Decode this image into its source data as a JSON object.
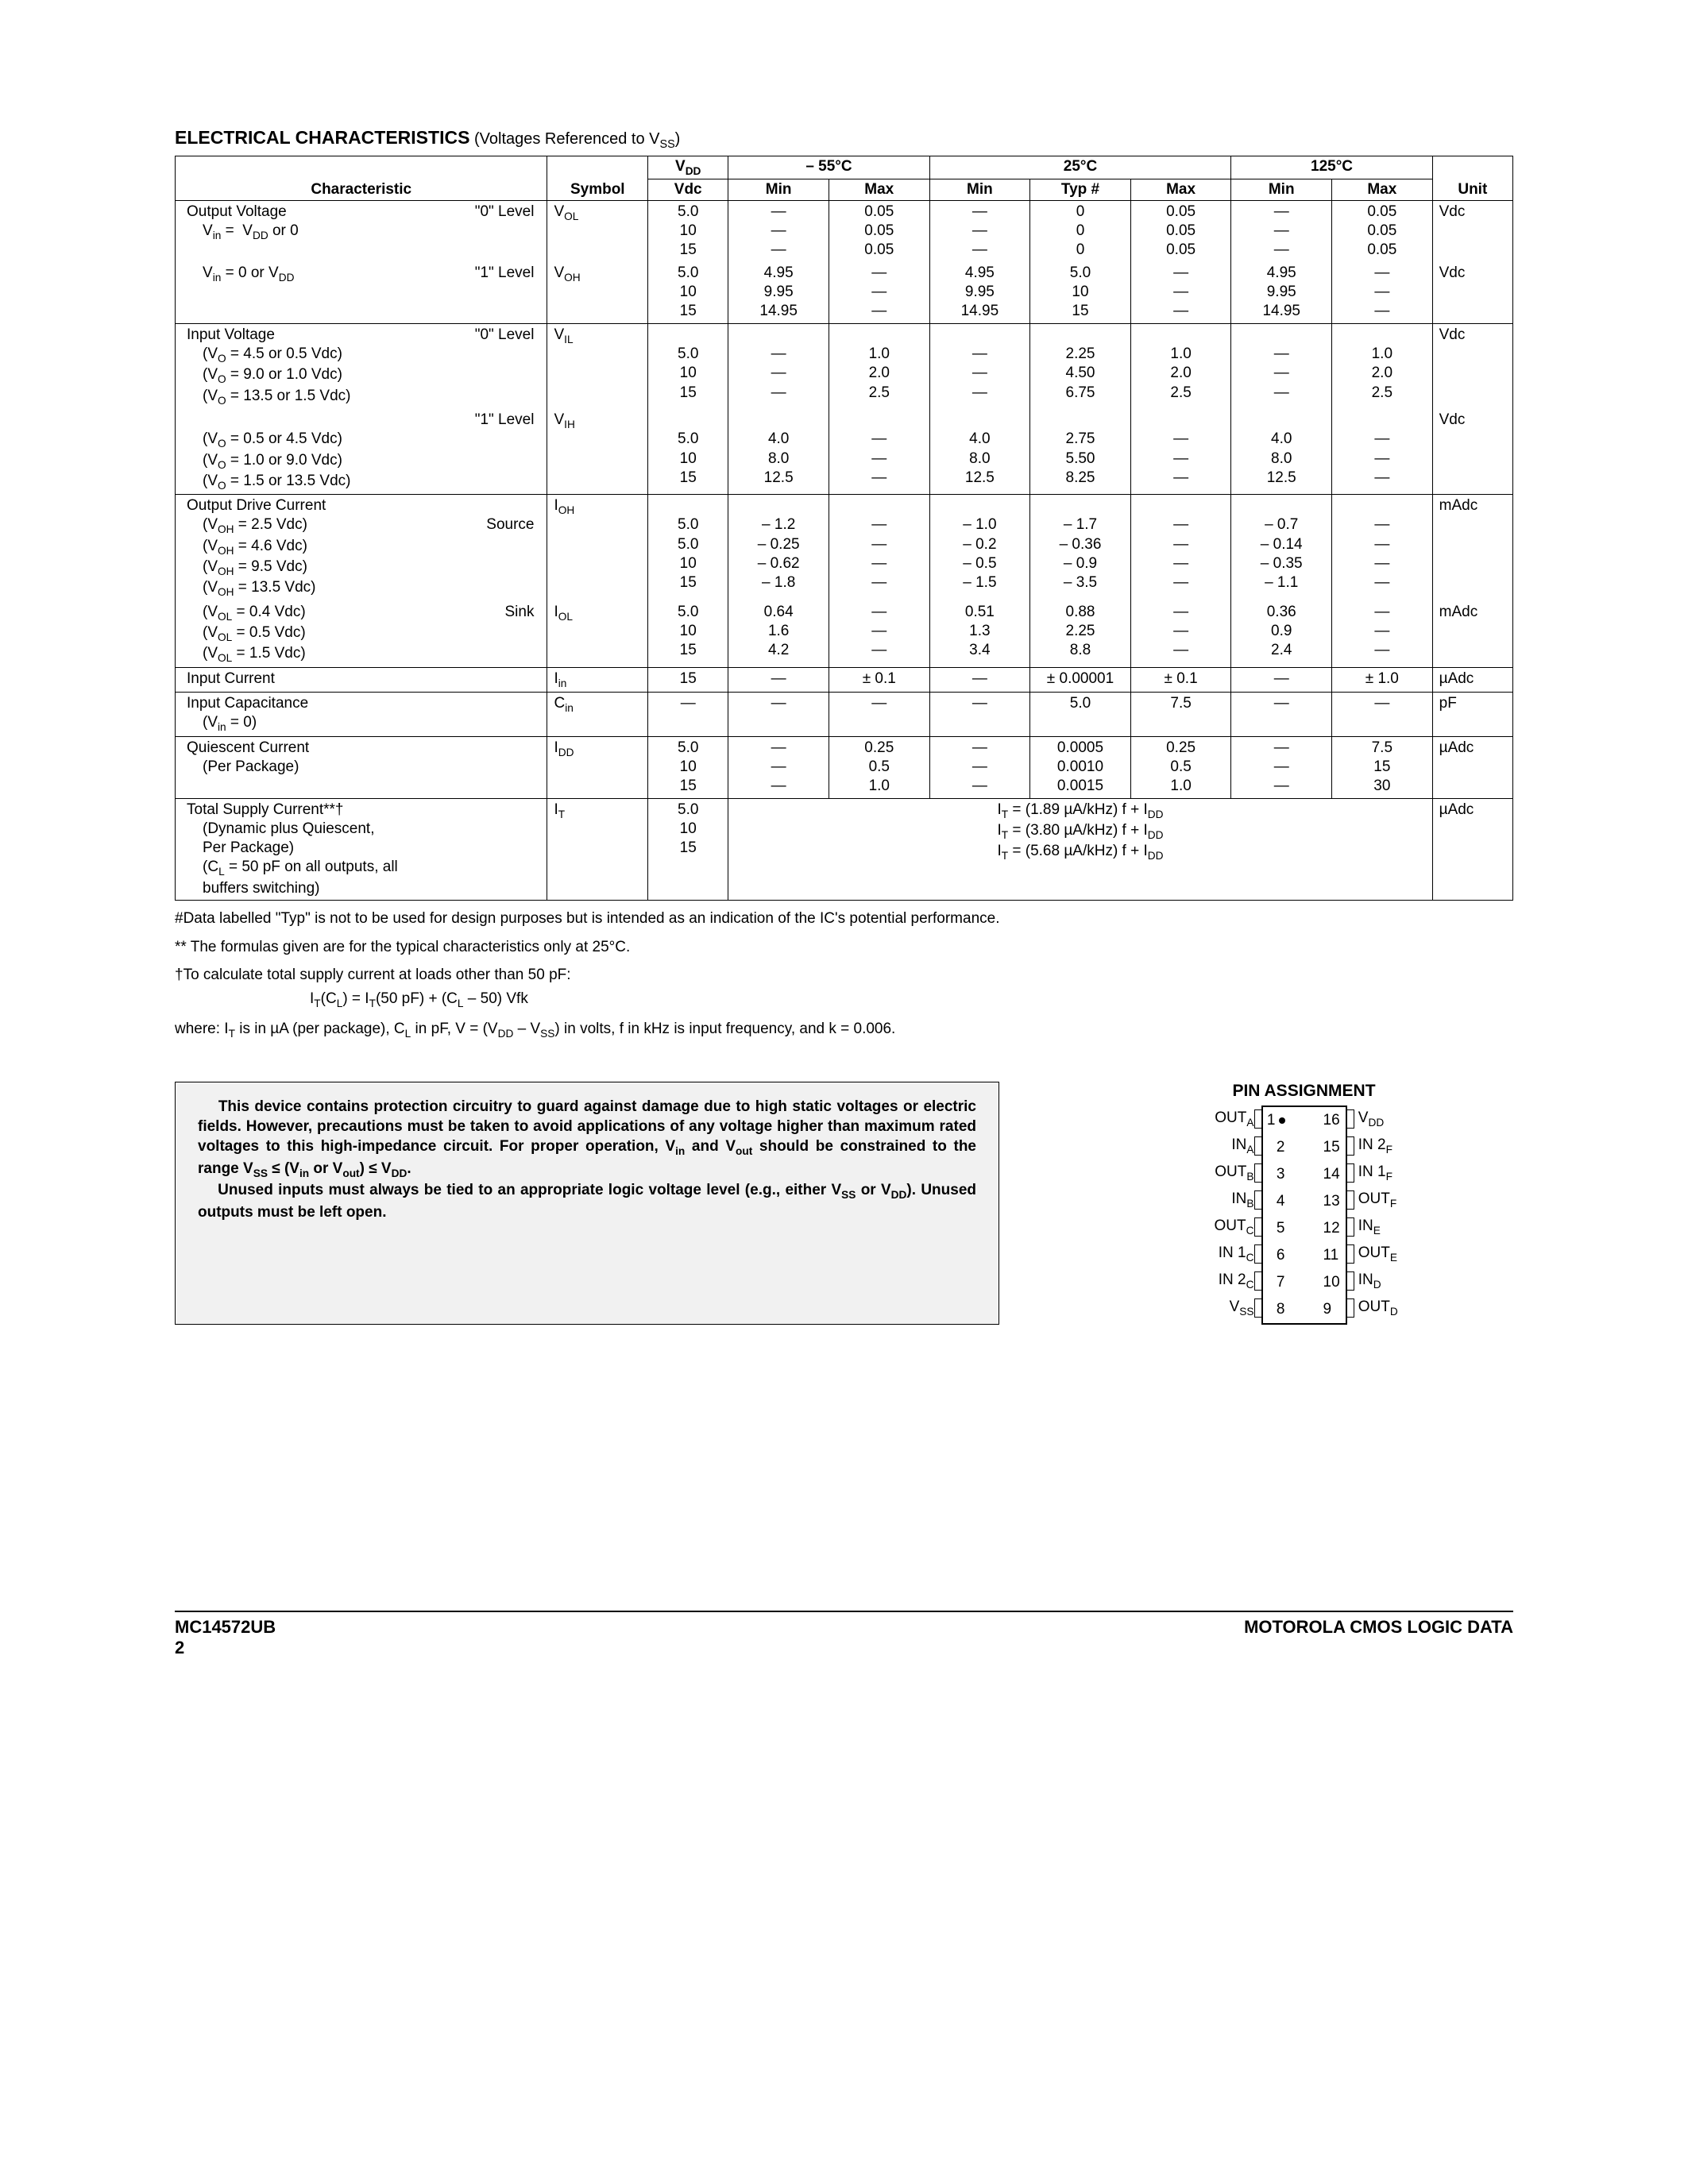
{
  "title": "ELECTRICAL CHARACTERISTICS",
  "title_note": "(Voltages Referenced to V_SS)",
  "header": {
    "characteristic": "Characteristic",
    "symbol": "Symbol",
    "vdd_top": "V_DD",
    "vdd_bot": "Vdc",
    "t1": "– 55°C",
    "t2": "25°C",
    "t3": "125°C",
    "min": "Min",
    "max": "Max",
    "typ": "Typ #",
    "unit": "Unit"
  },
  "rows": [
    {
      "char_html": "Output Voltage<span class='char-lvl'>\"0\" Level</span><br><span class='char-sub'>V<span class='sub'>in</span> =&nbsp;&nbsp;V<span class='sub'>DD</span> or 0</span>",
      "symbol_html": "V<span class='sub'>OL</span>",
      "vdd": "5.0<br>10<br>15",
      "t1min": "—<br>—<br>—",
      "t1max": "0.05<br>0.05<br>0.05",
      "t2min": "—<br>—<br>—",
      "t2typ": "0<br>0<br>0",
      "t2max": "0.05<br>0.05<br>0.05",
      "t3min": "—<br>—<br>—",
      "t3max": "0.05<br>0.05<br>0.05",
      "unit": "Vdc",
      "merge_with_next": true
    },
    {
      "char_html": "<span class='char-sub'>V<span class='sub'>in</span> = 0 or V<span class='sub'>DD</span></span><span class='char-lvl'>\"1\" Level</span>",
      "symbol_html": "V<span class='sub'>OH</span>",
      "vdd": "5.0<br>10<br>15",
      "t1min": "4.95<br>9.95<br>14.95",
      "t1max": "—<br>—<br>—",
      "t2min": "4.95<br>9.95<br>14.95",
      "t2typ": "5.0<br>10<br>15",
      "t2max": "—<br>—<br>—",
      "t3min": "4.95<br>9.95<br>14.95",
      "t3max": "—<br>—<br>—",
      "unit": "Vdc"
    },
    {
      "char_html": "Input Voltage<span class='char-lvl'>\"0\" Level</span><br><span class='char-sub'>(V<span class='sub'>O</span> = 4.5 or 0.5 Vdc)</span><br><span class='char-sub'>(V<span class='sub'>O</span> = 9.0 or 1.0 Vdc)</span><br><span class='char-sub'>(V<span class='sub'>O</span> = 13.5 or 1.5 Vdc)</span>",
      "symbol_html": "V<span class='sub'>IL</span>",
      "vdd": "<br>5.0<br>10<br>15",
      "t1min": "<br>—<br>—<br>—",
      "t1max": "<br>1.0<br>2.0<br>2.5",
      "t2min": "<br>—<br>—<br>—",
      "t2typ": "<br>2.25<br>4.50<br>6.75",
      "t2max": "<br>1.0<br>2.0<br>2.5",
      "t3min": "<br>—<br>—<br>—",
      "t3max": "<br>1.0<br>2.0<br>2.5",
      "unit": "Vdc",
      "merge_with_next": true
    },
    {
      "char_html": "<span class='char-lvl'>\"1\" Level</span><br><span class='char-sub'>(V<span class='sub'>O</span> = 0.5 or 4.5 Vdc)</span><br><span class='char-sub'>(V<span class='sub'>O</span> = 1.0 or 9.0 Vdc)</span><br><span class='char-sub'>(V<span class='sub'>O</span> = 1.5 or 13.5 Vdc)</span>",
      "symbol_html": "V<span class='sub'>IH</span>",
      "vdd": "<br>5.0<br>10<br>15",
      "t1min": "<br>4.0<br>8.0<br>12.5",
      "t1max": "<br>—<br>—<br>—",
      "t2min": "<br>4.0<br>8.0<br>12.5",
      "t2typ": "<br>2.75<br>5.50<br>8.25",
      "t2max": "<br>—<br>—<br>—",
      "t3min": "<br>4.0<br>8.0<br>12.5",
      "t3max": "<br>—<br>—<br>—",
      "unit": "Vdc"
    },
    {
      "char_html": "Output Drive Current<br><span class='char-sub'>(V<span class='sub'>OH</span> = 2.5 Vdc)</span><span class='char-lvl'>Source</span><br><span class='char-sub'>(V<span class='sub'>OH</span> = 4.6 Vdc)</span><br><span class='char-sub'>(V<span class='sub'>OH</span> = 9.5 Vdc)</span><br><span class='char-sub'>(V<span class='sub'>OH</span> = 13.5 Vdc)</span>",
      "symbol_html": "I<span class='sub'>OH</span>",
      "vdd": "<br>5.0<br>5.0<br>10<br>15",
      "t1min": "<br>– 1.2<br>– 0.25<br>– 0.62<br>– 1.8",
      "t1max": "<br>—<br>—<br>—<br>—",
      "t2min": "<br>– 1.0<br>– 0.2<br>– 0.5<br>– 1.5",
      "t2typ": "<br>– 1.7<br>– 0.36<br>– 0.9<br>– 3.5",
      "t2max": "<br>—<br>—<br>—<br>—",
      "t3min": "<br>– 0.7<br>– 0.14<br>– 0.35<br>– 1.1",
      "t3max": "<br>—<br>—<br>—<br>—",
      "unit": "mAdc",
      "merge_with_next": true
    },
    {
      "char_html": "<span class='char-sub'>(V<span class='sub'>OL</span> = 0.4 Vdc)</span><span class='char-lvl'>Sink</span><br><span class='char-sub'>(V<span class='sub'>OL</span> = 0.5 Vdc)</span><br><span class='char-sub'>(V<span class='sub'>OL</span> = 1.5 Vdc)</span>",
      "symbol_html": "I<span class='sub'>OL</span>",
      "vdd": "5.0<br>10<br>15",
      "t1min": "0.64<br>1.6<br>4.2",
      "t1max": "—<br>—<br>—",
      "t2min": "0.51<br>1.3<br>3.4",
      "t2typ": "0.88<br>2.25<br>8.8",
      "t2max": "—<br>—<br>—",
      "t3min": "0.36<br>0.9<br>2.4",
      "t3max": "—<br>—<br>—",
      "unit": "mAdc"
    },
    {
      "char_html": "Input Current",
      "symbol_html": "I<span class='sub'>in</span>",
      "vdd": "15",
      "t1min": "—",
      "t1max": "± 0.1",
      "t2min": "—",
      "t2typ": "± 0.00001",
      "t2max": "± 0.1",
      "t3min": "—",
      "t3max": "± 1.0",
      "unit": "µAdc"
    },
    {
      "char_html": "Input Capacitance<br><span class='char-sub'>(V<span class='sub'>in</span> = 0)</span>",
      "symbol_html": "C<span class='sub'>in</span>",
      "vdd": "—",
      "t1min": "—",
      "t1max": "—",
      "t2min": "—",
      "t2typ": "5.0",
      "t2max": "7.5",
      "t3min": "—",
      "t3max": "—",
      "unit": "pF"
    },
    {
      "char_html": "Quiescent Current<br><span class='char-sub'>(Per Package)</span>",
      "symbol_html": "I<span class='sub'>DD</span>",
      "vdd": "5.0<br>10<br>15",
      "t1min": "—<br>—<br>—",
      "t1max": "0.25<br>0.5<br>1.0",
      "t2min": "—<br>—<br>—",
      "t2typ": "0.0005<br>0.0010<br>0.0015",
      "t2max": "0.25<br>0.5<br>1.0",
      "t3min": "—<br>—<br>—",
      "t3max": "7.5<br>15<br>30",
      "unit": "µAdc"
    },
    {
      "char_html": "Total Supply Current**†<br><span class='char-sub'>(Dynamic plus Quiescent,</span><br><span class='char-sub'>Per Package)</span><br><span class='char-sub'>(C<span class='sub'>L</span> = 50 pF on all outputs, all</span><br><span class='char-sub'>buffers switching)</span>",
      "symbol_html": "I<span class='sub'>T</span>",
      "vdd": "5.0<br>10<br>15",
      "span_html": "I<span class='sub'>T</span> = (1.89 µA/kHz) f + I<span class='sub'>DD</span><br>I<span class='sub'>T</span> = (3.80 µA/kHz) f + I<span class='sub'>DD</span><br>I<span class='sub'>T</span> = (5.68 µA/kHz) f + I<span class='sub'>DD</span>",
      "unit": "µAdc",
      "is_span": true
    }
  ],
  "footnotes": [
    "#Data labelled \"Typ\" is not to be used for design purposes but is intended as an indication of the IC's potential performance.",
    "** The formulas given are for the typical characteristics only at 25°C.",
    "†To calculate total supply current at loads other than 50 pF:"
  ],
  "formula_html": "I<span class='sub'>T</span>(C<span class='sub'>L</span>) = I<span class='sub'>T</span>(50 pF) + (C<span class='sub'>L</span> – 50) Vfk",
  "where_html": "where: I<span class='sub'>T</span> is in µA (per package), C<span class='sub'>L</span> in pF, V = (V<span class='sub'>DD</span> – V<span class='sub'>SS</span>) in volts, f in kHz is input frequency, and k = 0.006.",
  "warning_html": "&nbsp;&nbsp;&nbsp;&nbsp;This device contains protection circuitry to guard against damage due to high static voltages or electric fields. However, precautions must be taken to avoid applications of any voltage higher than maximum rated voltages to this high-impedance circuit. For proper operation, V<span class='sub'>in</span> and V<span class='sub'>out</span> should be constrained to the range V<span class='sub'>SS</span> ≤ (V<span class='sub'>in</span> or V<span class='sub'>out</span>) ≤ V<span class='sub'>DD</span>.<br>&nbsp;&nbsp;&nbsp;&nbsp;Unused inputs must always be tied to an appropriate logic voltage level (e.g., either V<span class='sub'>SS</span> or V<span class='sub'>DD</span>). Unused outputs must be left open.",
  "pin": {
    "title": "PIN ASSIGNMENT",
    "left": [
      {
        "lbl": "OUT<span class='sub'>A</span>",
        "num": "1",
        "dot": true
      },
      {
        "lbl": "IN<span class='sub'>A</span>",
        "num": "2"
      },
      {
        "lbl": "OUT<span class='sub'>B</span>",
        "num": "3"
      },
      {
        "lbl": "IN<span class='sub'>B</span>",
        "num": "4"
      },
      {
        "lbl": "OUT<span class='sub'>C</span>",
        "num": "5"
      },
      {
        "lbl": "IN 1<span class='sub'>C</span>",
        "num": "6"
      },
      {
        "lbl": "IN 2<span class='sub'>C</span>",
        "num": "7"
      },
      {
        "lbl": "V<span class='sub'>SS</span>",
        "num": "8"
      }
    ],
    "right": [
      {
        "lbl": "V<span class='sub'>DD</span>",
        "num": "16"
      },
      {
        "lbl": "IN 2<span class='sub'>F</span>",
        "num": "15"
      },
      {
        "lbl": "IN 1<span class='sub'>F</span>",
        "num": "14"
      },
      {
        "lbl": "OUT<span class='sub'>F</span>",
        "num": "13"
      },
      {
        "lbl": "IN<span class='sub'>E</span>",
        "num": "12"
      },
      {
        "lbl": "OUT<span class='sub'>E</span>",
        "num": "11"
      },
      {
        "lbl": "IN<span class='sub'>D</span>",
        "num": "10"
      },
      {
        "lbl": "OUT<span class='sub'>D</span>",
        "num": "9"
      }
    ]
  },
  "footer": {
    "left": "MC14572UB",
    "page": "2",
    "right": "MOTOROLA CMOS LOGIC DATA"
  }
}
